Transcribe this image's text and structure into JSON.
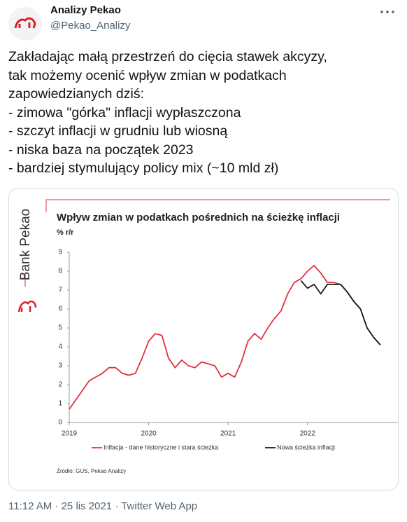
{
  "tweet": {
    "name": "Analizy Pekao",
    "handle": "@Pekao_Analizy",
    "text": [
      "Zakładając małą przestrzeń do cięcia stawek akcyzy,",
      "tak możemy ocenić wpływ zmian w podatkach",
      "zapowiedzianych dziś:",
      "- zimowa \"górka\" inflacji wypłaszczona",
      "- szczyt inflacji w grudniu lub wiosną",
      "- niska baza na początek 2023",
      "- bardziej stymulujący policy mix (~10 mld zł)"
    ],
    "footer": "11:12 AM · 25 lis 2021 · Twitter Web App"
  },
  "chart_data": {
    "type": "line",
    "brand": "Bank Pekao",
    "title": "Wpływ zmian w podatkach pośrednich na ścieżkę inflacji",
    "subtitle": "% r/r",
    "source": "Źródło: GUS, Pekao Analizy",
    "x": [
      2019,
      2019.083,
      2019.167,
      2019.25,
      2019.333,
      2019.417,
      2019.5,
      2019.583,
      2019.667,
      2019.75,
      2019.833,
      2019.917,
      2020,
      2020.083,
      2020.167,
      2020.25,
      2020.333,
      2020.417,
      2020.5,
      2020.583,
      2020.667,
      2020.75,
      2020.833,
      2020.917,
      2021,
      2021.083,
      2021.167,
      2021.25,
      2021.333,
      2021.417,
      2021.5,
      2021.583,
      2021.667,
      2021.75,
      2021.833,
      2021.917,
      2022,
      2022.083,
      2022.167,
      2022.25,
      2022.333,
      2022.417,
      2022.5,
      2022.583,
      2022.667,
      2022.75,
      2022.833,
      2022.917
    ],
    "series": [
      {
        "name": "Inflacja - dane historyczne i stara ścieżka",
        "color": "#e0343c",
        "values": [
          0.7,
          1.2,
          1.7,
          2.2,
          2.4,
          2.6,
          2.9,
          2.9,
          2.6,
          2.5,
          2.6,
          3.4,
          4.3,
          4.7,
          4.6,
          3.4,
          2.9,
          3.3,
          3.0,
          2.9,
          3.2,
          3.1,
          3.0,
          2.4,
          2.6,
          2.4,
          3.2,
          4.3,
          4.7,
          4.4,
          5.0,
          5.5,
          5.9,
          6.8,
          7.4,
          7.6,
          8.0,
          8.3,
          7.9,
          7.4,
          7.4,
          7.3,
          6.9,
          6.4,
          6.0,
          5.0,
          4.5,
          4.1
        ]
      },
      {
        "name": "Nowa ścieżka inflacji",
        "color": "#1a1a1a",
        "values": [
          null,
          null,
          null,
          null,
          null,
          null,
          null,
          null,
          null,
          null,
          null,
          null,
          null,
          null,
          null,
          null,
          null,
          null,
          null,
          null,
          null,
          null,
          null,
          null,
          null,
          null,
          null,
          null,
          null,
          null,
          null,
          null,
          null,
          null,
          null,
          7.5,
          7.1,
          7.3,
          6.8,
          7.3,
          7.3,
          7.3,
          6.9,
          6.4,
          6.0,
          5.0,
          4.5,
          4.1
        ]
      }
    ],
    "xlim": [
      2019,
      2023.05
    ],
    "xticks": [
      2019,
      2020,
      2021,
      2022
    ],
    "ylim": [
      0,
      9
    ],
    "yticks": [
      0,
      1,
      2,
      3,
      4,
      5,
      6,
      7,
      8,
      9
    ],
    "grid": false,
    "legend": "bottom"
  }
}
